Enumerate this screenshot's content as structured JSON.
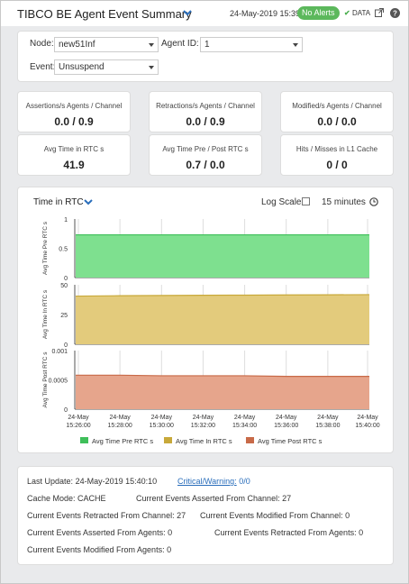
{
  "header": {
    "title": "TIBCO BE Agent Event Summary",
    "date": "24-May-2019 15:39",
    "alert_badge": "No Alerts",
    "data_link": "DATA",
    "badge_color": "#5cb85c"
  },
  "filters": {
    "node_label": "Node:",
    "node_value": "new51Inf",
    "agent_label": "Agent ID:",
    "agent_value": "1",
    "event_label": "Event:",
    "event_value": "Unsuspend"
  },
  "cards": [
    {
      "label": "Assertions/s Agents / Channel",
      "value": "0.0 / 0.9"
    },
    {
      "label": "Retractions/s Agents / Channel",
      "value": "0.0 / 0.9"
    },
    {
      "label": "Modified/s Agents / Channel",
      "value": "0.0 / 0.0"
    },
    {
      "label": "Avg Time in RTC s",
      "value": "41.9"
    },
    {
      "label": "Avg Time Pre / Post RTC s",
      "value": "0.7 / 0.0"
    },
    {
      "label": "Hits / Misses in L1 Cache",
      "value": "0 / 0"
    }
  ],
  "chart_panel": {
    "title": "Time in RTC",
    "log_scale_label": "Log Scale:",
    "time_range": "15 minutes"
  },
  "chart_data": {
    "type": "area",
    "x": [
      "24-May 15:26:00",
      "24-May 15:28:00",
      "24-May 15:30:00",
      "24-May 15:32:00",
      "24-May 15:34:00",
      "24-May 15:36:00",
      "24-May 15:38:00",
      "24-May 15:40:00"
    ],
    "x_tick_date": "24-May",
    "x_tick_times": [
      "15:26:00",
      "15:28:00",
      "15:30:00",
      "15:32:00",
      "15:34:00",
      "15:36:00",
      "15:38:00",
      "15:40:00"
    ],
    "grid": true,
    "legend_position": "bottom",
    "series": [
      {
        "name": "Avg Time Pre RTC s",
        "ylabel": "Avg Time Pre RTC s",
        "color": "#7ee08f",
        "edge": "#3fbf5a",
        "ylim": [
          0,
          1
        ],
        "yticks": [
          "1",
          "0.5",
          "0"
        ],
        "values": [
          0.73,
          0.73,
          0.73,
          0.73,
          0.73,
          0.73,
          0.73,
          0.73
        ]
      },
      {
        "name": "Avg Time In RTC s",
        "ylabel": "Avg Time In RTC s",
        "color": "#e3cb7c",
        "edge": "#c8a93a",
        "ylim": [
          0,
          50
        ],
        "yticks": [
          "50",
          "25",
          "0"
        ],
        "values": [
          40.5,
          40.8,
          41.0,
          41.2,
          41.3,
          41.5,
          41.6,
          41.7
        ]
      },
      {
        "name": "Avg Time Post RTC s",
        "ylabel": "Avg Time Post RTC s",
        "color": "#e6a58c",
        "edge": "#c86a48",
        "ylim": [
          0,
          0.001
        ],
        "yticks": [
          "0.001",
          "0.0005",
          "0"
        ],
        "values": [
          0.00058,
          0.00058,
          0.00057,
          0.00057,
          0.00057,
          0.00056,
          0.00056,
          0.00056
        ]
      }
    ]
  },
  "status": {
    "last_update_label": "Last Update:",
    "last_update_value": "24-May-2019 15:40:10",
    "critical_label": "Critical/Warning:",
    "critical_value": "0/0",
    "cache_mode": "Cache Mode: CACHE",
    "asserted_channel": "Current Events Asserted From Channel: 27",
    "retracted_channel": "Current Events Retracted From Channel: 27",
    "modified_channel": "Current Events Modified From Channel: 0",
    "asserted_agents": "Current Events Asserted From Agents: 0",
    "retracted_agents": "Current Events Retracted From Agents: 0",
    "modified_agents": "Current Events Modified From Agents: 0"
  }
}
